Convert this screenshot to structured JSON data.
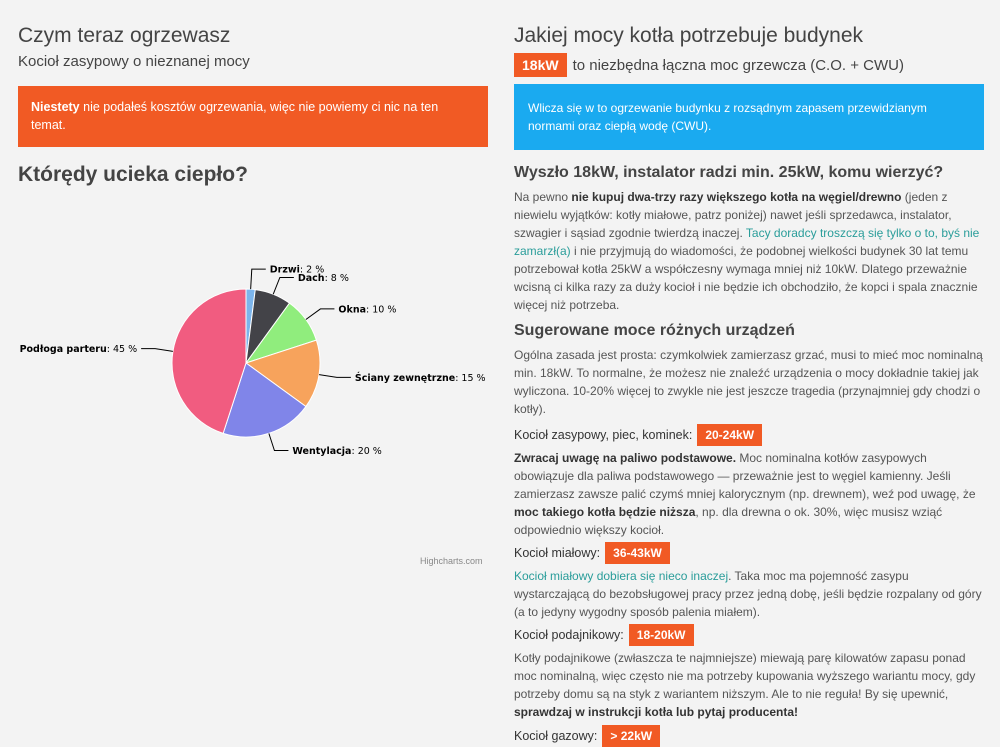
{
  "left": {
    "heading": "Czym teraz ogrzewasz",
    "subheading": "Kocioł zasypowy o nieznanej mocy",
    "alert_bold": "Niestety",
    "alert_rest": " nie podałeś kosztów ogrzewania, więc nie powiemy ci nic na ten temat.",
    "pie_heading": "Którędy ucieka ciepło?",
    "credit": "Highcharts.com"
  },
  "chart_data": {
    "type": "pie",
    "title": "",
    "slices": [
      {
        "name": "Drzwi",
        "value": 2,
        "label": "2 %",
        "color": "#7cb5ec"
      },
      {
        "name": "Dach",
        "value": 8,
        "label": "8 %",
        "color": "#434348"
      },
      {
        "name": "Okna",
        "value": 10,
        "label": "10 %",
        "color": "#90ed7d"
      },
      {
        "name": "Ściany zewnętrzne",
        "value": 15,
        "label": "15 %",
        "color": "#f7a35c"
      },
      {
        "name": "Wentylacja",
        "value": 20,
        "label": "20 %",
        "color": "#8085e9"
      },
      {
        "name": "Podłoga parteru",
        "value": 45,
        "label": "45 %",
        "color": "#f15c80"
      }
    ]
  },
  "right": {
    "heading": "Jakiej mocy kotła potrzebuje budynek",
    "power_badge": "18kW",
    "power_text": "to niezbędna łączna moc grzewcza (C.O. + CWU)",
    "info_text": "Wlicza się w to ogrzewanie budynku z rozsądnym zapasem przewidzianym normami oraz ciepłą wodę (CWU).",
    "q_heading": "Wyszło 18kW, instalator radzi min. 25kW, komu wierzyć?",
    "p1_a": "Na pewno ",
    "p1_b": "nie kupuj dwa-trzy razy większego kotła na węgiel/drewno",
    "p1_c": " (jeden z niewielu wyjątków: kotły miałowe, patrz poniżej) nawet jeśli sprzedawca, instalator, szwagier i sąsiad zgodnie twierdzą inaczej. ",
    "p1_link": "Tacy doradcy troszczą się tylko o to, byś nie zamarzł(a)",
    "p1_d": " i nie przyjmują do wiadomości, że podobnej wielkości budynek 30 lat temu potrzebował kotła 25kW a współczesny wymaga mniej niż 10kW. Dlatego przeważnie wcisną ci kilka razy za duży kocioł i nie będzie ich obchodziło, że kopci i spala znacznie więcej niż potrzeba.",
    "s_heading": "Sugerowane moce różnych urządzeń",
    "p2": "Ogólna zasada jest prosta: czymkolwiek zamierzasz grzać, musi to mieć moc nominalną min. 18kW. To normalne, że możesz nie znaleźć urządzenia o mocy dokładnie takiej jak wyliczona. 10-20% więcej to zwykle nie jest jeszcze tragedia (przynajmniej gdy chodzi o kotły).",
    "dev1_label": "Kocioł zasypowy, piec, kominek:",
    "dev1_value": "20-24kW",
    "p3_a": "Zwracaj uwagę na paliwo podstawowe.",
    "p3_b": " Moc nominalna kotłów zasypowych obowiązuje dla paliwa podstawowego — przeważnie jest to węgiel kamienny. Jeśli zamierzasz zawsze palić czymś mniej kalorycznym (np. drewnem), weź pod uwagę, że ",
    "p3_c": "moc takiego kotła będzie niższa",
    "p3_d": ", np. dla drewna o ok. 30%, więc musisz wziąć odpowiednio większy kocioł.",
    "dev2_label": "Kocioł miałowy:",
    "dev2_value": "36-43kW",
    "p4_link": "Kocioł miałowy dobiera się nieco inaczej",
    "p4_rest": ". Taka moc ma pojemność zasypu wystarczającą do bezobsługowej pracy przez jedną dobę, jeśli będzie rozpalany od góry (a to jedyny wygodny sposób palenia miałem).",
    "dev3_label": "Kocioł podajnikowy:",
    "dev3_value": "18-20kW",
    "p5_a": "Kotły podajnikowe (zwłaszcza te najmniejsze) miewają parę kilowatów zapasu ponad moc nominalną, więc często nie ma potrzeby kupowania wyższego wariantu mocy, gdy potrzeby domu są na styk z wariantem niższym. Ale to nie reguła! By się upewnić, ",
    "p5_b": "sprawdzaj w instrukcji kotła lub pytaj producenta!",
    "dev4_label": "Kocioł gazowy:",
    "dev4_value": "> 22kW"
  }
}
